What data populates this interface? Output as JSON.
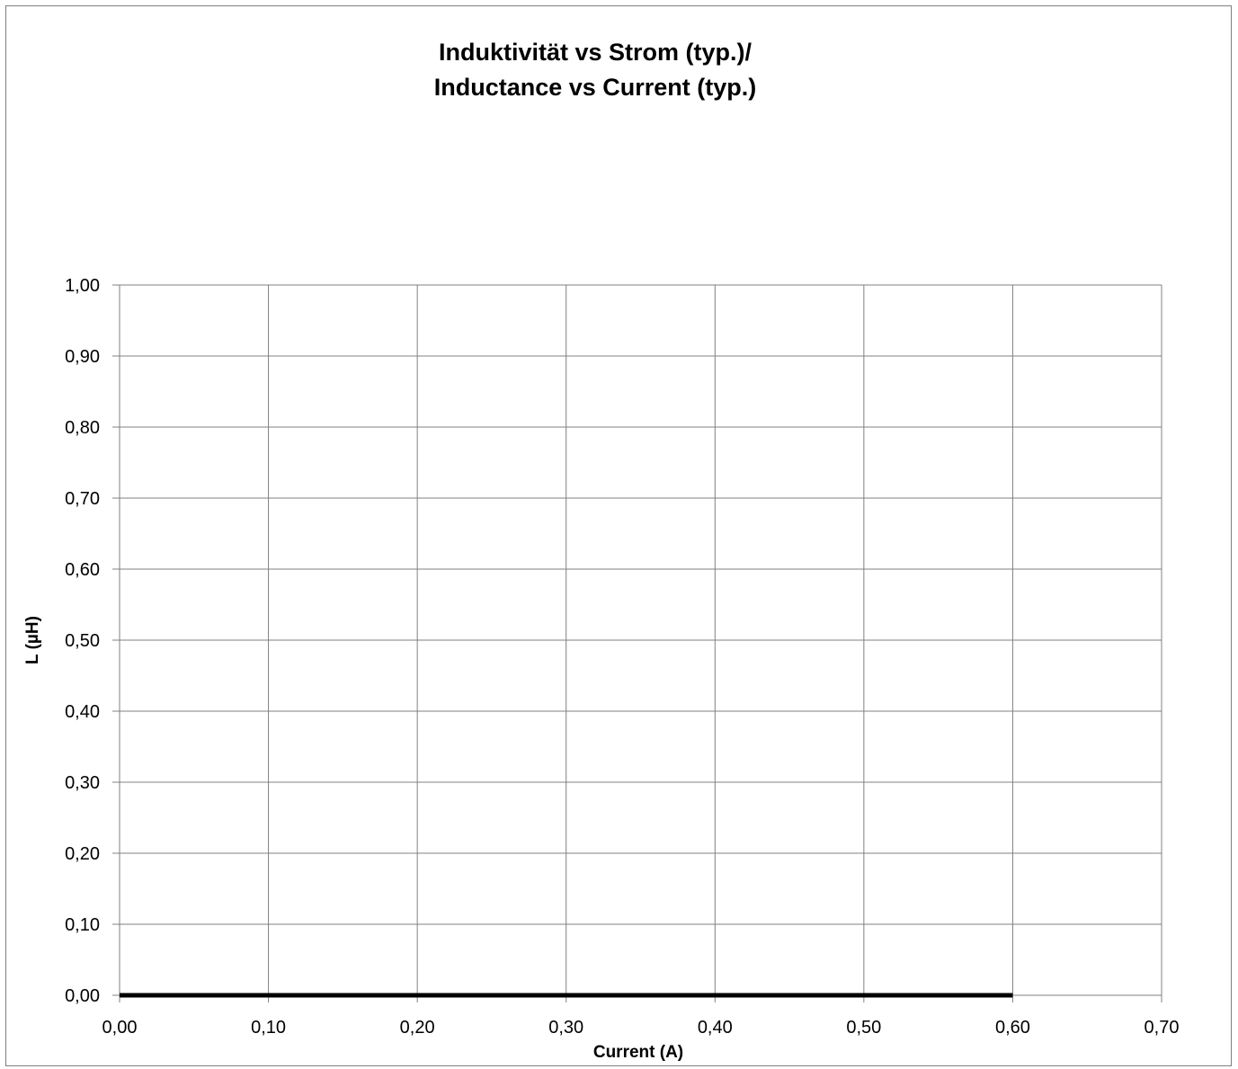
{
  "chart_data": {
    "type": "line",
    "title_lines": [
      "Induktivität vs Strom (typ.)/",
      "Inductance vs Current (typ.)"
    ],
    "xlabel": "Current (A)",
    "ylabel": "L (µH)",
    "xlim": [
      0,
      0.7
    ],
    "ylim": [
      0,
      1.0
    ],
    "x_ticks": [
      0,
      0.1,
      0.2,
      0.3,
      0.4,
      0.5,
      0.6,
      0.7
    ],
    "x_tick_labels": [
      "0,00",
      "0,10",
      "0,20",
      "0,30",
      "0,40",
      "0,50",
      "0,60",
      "0,70"
    ],
    "y_ticks": [
      0,
      0.1,
      0.2,
      0.3,
      0.4,
      0.5,
      0.6,
      0.7,
      0.8,
      0.9,
      1.0
    ],
    "y_tick_labels": [
      "0,00",
      "0,10",
      "0,20",
      "0,30",
      "0,40",
      "0,50",
      "0,60",
      "0,70",
      "0,80",
      "0,90",
      "1,00"
    ],
    "grid": true,
    "series": [
      {
        "x": [
          0,
          0.6
        ],
        "y": [
          0,
          0
        ],
        "color": "#000000"
      }
    ]
  }
}
